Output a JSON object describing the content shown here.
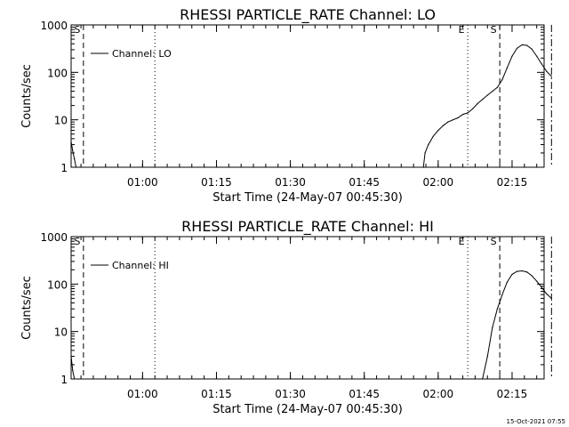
{
  "footer": {
    "timestamp": "15-Oct-2021 07:55"
  },
  "chart_data": [
    {
      "type": "line",
      "title": "RHESSI PARTICLE_RATE Channel: LO",
      "xlabel": "Start Time (24-May-07 00:45:30)",
      "ylabel": "Counts/sec",
      "yscale": "log",
      "ylim": [
        1,
        1000
      ],
      "xlim_min_since_start": [
        0,
        96
      ],
      "x_ticks": [
        "01:00",
        "01:15",
        "01:30",
        "01:45",
        "02:00",
        "02:15"
      ],
      "y_ticks": [
        "1",
        "10",
        "100",
        "1000"
      ],
      "grid": false,
      "legend": {
        "label": "Channel: LO",
        "placement": "top-left"
      },
      "markers": [
        {
          "label": "S",
          "style": "dashed",
          "time": "00:48:00"
        },
        {
          "label": "",
          "style": "dotted",
          "time": "01:02:30"
        },
        {
          "label": "E",
          "style": "dotted",
          "time": "02:06:00"
        },
        {
          "label": "S",
          "style": "dashed",
          "time": "02:12:30"
        },
        {
          "label": "",
          "style": "dashdot",
          "time": "02:23:00"
        }
      ],
      "series": [
        {
          "name": "Channel: LO",
          "segments": [
            [
              [
                "00:45:30",
                3.5
              ],
              [
                "00:45:50",
                2.2
              ],
              [
                "00:46:10",
                1.5
              ],
              [
                "00:46:30",
                1.0
              ]
            ],
            [
              [
                "01:57:00",
                1.0
              ],
              [
                "01:57:20",
                2.0
              ],
              [
                "01:58:00",
                3.0
              ],
              [
                "01:59:00",
                4.5
              ],
              [
                "02:00:00",
                6.0
              ],
              [
                "02:01:00",
                7.5
              ],
              [
                "02:02:00",
                9.0
              ],
              [
                "02:03:00",
                10.0
              ],
              [
                "02:04:00",
                11.0
              ],
              [
                "02:05:00",
                13.0
              ],
              [
                "02:06:00",
                14.0
              ],
              [
                "02:07:00",
                17.0
              ],
              [
                "02:08:00",
                22.0
              ],
              [
                "02:09:00",
                27.0
              ],
              [
                "02:10:00",
                33.0
              ],
              [
                "02:11:00",
                40.0
              ],
              [
                "02:12:00",
                48.0
              ],
              [
                "02:13:00",
                70.0
              ],
              [
                "02:14:00",
                125.0
              ],
              [
                "02:15:00",
                220.0
              ],
              [
                "02:16:00",
                320.0
              ],
              [
                "02:17:00",
                380.0
              ],
              [
                "02:18:00",
                370.0
              ],
              [
                "02:19:00",
                310.0
              ],
              [
                "02:20:00",
                220.0
              ],
              [
                "02:21:00",
                150.0
              ],
              [
                "02:22:00",
                105.0
              ],
              [
                "02:23:00",
                82.0
              ]
            ]
          ]
        }
      ]
    },
    {
      "type": "line",
      "title": "RHESSI PARTICLE_RATE Channel: HI",
      "xlabel": "Start Time (24-May-07 00:45:30)",
      "ylabel": "Counts/sec",
      "yscale": "log",
      "ylim": [
        1,
        1000
      ],
      "xlim_min_since_start": [
        0,
        96
      ],
      "x_ticks": [
        "01:00",
        "01:15",
        "01:30",
        "01:45",
        "02:00",
        "02:15"
      ],
      "y_ticks": [
        "1",
        "10",
        "100",
        "1000"
      ],
      "grid": false,
      "legend": {
        "label": "Channel: HI",
        "placement": "top-left"
      },
      "markers": [
        {
          "label": "S",
          "style": "dashed",
          "time": "00:48:00"
        },
        {
          "label": "",
          "style": "dotted",
          "time": "01:02:30"
        },
        {
          "label": "E",
          "style": "dotted",
          "time": "02:06:00"
        },
        {
          "label": "S",
          "style": "dashed",
          "time": "02:12:30"
        },
        {
          "label": "",
          "style": "dashdot",
          "time": "02:23:00"
        }
      ],
      "series": [
        {
          "name": "Channel: HI",
          "segments": [
            [
              [
                "00:45:30",
                3.0
              ],
              [
                "00:45:50",
                1.5
              ],
              [
                "00:46:10",
                1.0
              ]
            ],
            [
              [
                "02:09:00",
                1.0
              ],
              [
                "02:10:00",
                3.0
              ],
              [
                "02:11:00",
                12.0
              ],
              [
                "02:12:00",
                30.0
              ],
              [
                "02:13:00",
                60.0
              ],
              [
                "02:14:00",
                110.0
              ],
              [
                "02:15:00",
                160.0
              ],
              [
                "02:16:00",
                185.0
              ],
              [
                "02:17:00",
                190.0
              ],
              [
                "02:18:00",
                180.0
              ],
              [
                "02:19:00",
                150.0
              ],
              [
                "02:20:00",
                115.0
              ],
              [
                "02:21:00",
                85.0
              ],
              [
                "02:22:00",
                62.0
              ],
              [
                "02:23:00",
                50.0
              ]
            ]
          ]
        }
      ]
    }
  ]
}
